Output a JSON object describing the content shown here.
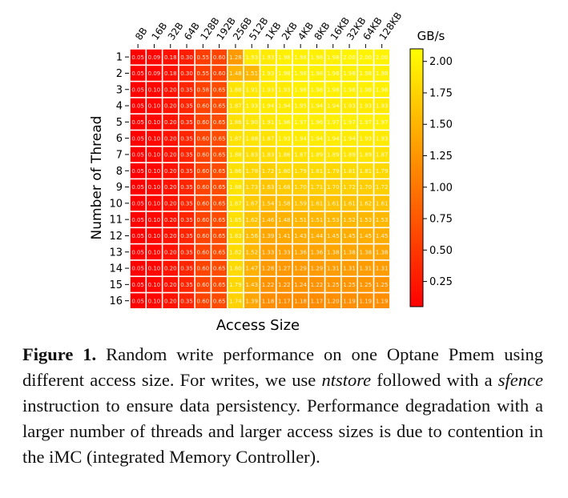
{
  "chart_data": {
    "type": "heatmap",
    "xlabel": "Access Size",
    "ylabel": "Number of Thread",
    "x_categories": [
      "8B",
      "16B",
      "32B",
      "64B",
      "128B",
      "192B",
      "256B",
      "512B",
      "1KB",
      "2KB",
      "4KB",
      "8KB",
      "16KB",
      "32KB",
      "64KB",
      "128KB"
    ],
    "y_categories": [
      "1",
      "2",
      "3",
      "4",
      "5",
      "6",
      "7",
      "8",
      "9",
      "10",
      "11",
      "12",
      "13",
      "14",
      "15",
      "16"
    ],
    "colorbar": {
      "title": "GB/s",
      "range": [
        0.05,
        2.1
      ],
      "ticks": [
        0.25,
        0.5,
        0.75,
        1.0,
        1.25,
        1.5,
        1.75,
        2.0
      ],
      "tick_labels": [
        "0.25",
        "0.50",
        "0.75",
        "1.00",
        "1.25",
        "1.50",
        "1.75",
        "2.00"
      ],
      "colormap": "autumn",
      "color_low": "#ff0000",
      "color_high": "#ffff00"
    },
    "values": [
      [
        0.05,
        0.09,
        0.18,
        0.3,
        0.55,
        0.6,
        1.28,
        1.93,
        1.93,
        1.98,
        1.98,
        1.98,
        1.98,
        2.0,
        2.0,
        2.0
      ],
      [
        0.05,
        0.09,
        0.18,
        0.3,
        0.55,
        0.6,
        1.48,
        1.51,
        1.93,
        1.98,
        1.98,
        1.98,
        1.98,
        1.98,
        1.98,
        1.98
      ],
      [
        0.05,
        0.1,
        0.2,
        0.35,
        0.58,
        0.65,
        1.88,
        1.91,
        1.93,
        1.93,
        1.98,
        1.98,
        1.98,
        1.98,
        1.98,
        1.98
      ],
      [
        0.05,
        0.1,
        0.2,
        0.35,
        0.6,
        0.65,
        1.87,
        1.93,
        1.94,
        1.94,
        1.95,
        1.94,
        1.94,
        1.93,
        1.93,
        1.93
      ],
      [
        0.05,
        0.1,
        0.2,
        0.35,
        0.6,
        0.65,
        1.86,
        1.9,
        1.91,
        1.96,
        1.97,
        1.96,
        1.97,
        1.97,
        1.97,
        1.97
      ],
      [
        0.05,
        0.1,
        0.2,
        0.35,
        0.6,
        0.65,
        1.87,
        1.88,
        1.87,
        1.93,
        1.94,
        1.94,
        1.94,
        1.94,
        1.93,
        1.93
      ],
      [
        0.05,
        0.1,
        0.2,
        0.35,
        0.6,
        0.65,
        1.88,
        1.83,
        1.83,
        1.86,
        1.87,
        1.89,
        1.89,
        1.89,
        1.89,
        1.87
      ],
      [
        0.05,
        0.1,
        0.2,
        0.35,
        0.6,
        0.65,
        1.86,
        1.78,
        1.72,
        1.8,
        1.79,
        1.81,
        1.79,
        1.81,
        1.81,
        1.79
      ],
      [
        0.05,
        0.1,
        0.2,
        0.35,
        0.6,
        0.65,
        1.88,
        1.73,
        1.63,
        1.68,
        1.7,
        1.71,
        1.7,
        1.72,
        1.7,
        1.72
      ],
      [
        0.05,
        0.1,
        0.2,
        0.35,
        0.6,
        0.65,
        1.87,
        1.67,
        1.54,
        1.58,
        1.59,
        1.61,
        1.61,
        1.61,
        1.62,
        1.61
      ],
      [
        0.05,
        0.1,
        0.2,
        0.35,
        0.6,
        0.65,
        1.85,
        1.62,
        1.46,
        1.48,
        1.51,
        1.51,
        1.53,
        1.52,
        1.53,
        1.53
      ],
      [
        0.05,
        0.1,
        0.2,
        0.35,
        0.6,
        0.65,
        1.83,
        1.56,
        1.39,
        1.41,
        1.43,
        1.44,
        1.45,
        1.45,
        1.45,
        1.45
      ],
      [
        0.05,
        0.1,
        0.2,
        0.35,
        0.6,
        0.65,
        1.82,
        1.52,
        1.33,
        1.33,
        1.36,
        1.36,
        1.38,
        1.38,
        1.38,
        1.38
      ],
      [
        0.05,
        0.1,
        0.2,
        0.35,
        0.6,
        0.65,
        1.8,
        1.47,
        1.28,
        1.27,
        1.29,
        1.29,
        1.31,
        1.31,
        1.31,
        1.31
      ],
      [
        0.05,
        0.1,
        0.2,
        0.35,
        0.6,
        0.65,
        1.79,
        1.43,
        1.22,
        1.22,
        1.24,
        1.22,
        1.25,
        1.25,
        1.25,
        1.25
      ],
      [
        0.05,
        0.1,
        0.2,
        0.35,
        0.6,
        0.65,
        1.74,
        1.39,
        1.18,
        1.17,
        1.18,
        1.17,
        1.2,
        1.19,
        1.19,
        1.19
      ]
    ]
  },
  "caption": {
    "label": "Figure 1.",
    "part1": " Random write performance on one Optane Pmem using different access size. For writes, we use ",
    "em1": "ntstore",
    "part2": " fol­lowed with a ",
    "em2": "sfence",
    "part3": " instruction to ensure data persistency. Performance degradation with a larger number of threads and larger access sizes is due to contention in the iMC (inte­grated Memory Controller)."
  }
}
